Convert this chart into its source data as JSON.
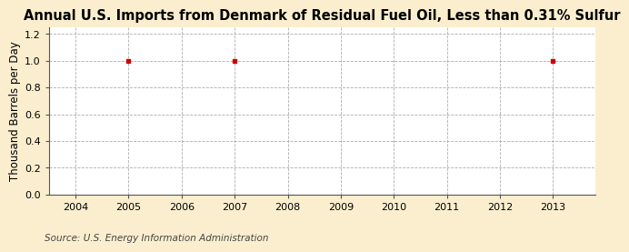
{
  "title": "Annual U.S. Imports from Denmark of Residual Fuel Oil, Less than 0.31% Sulfur",
  "ylabel": "Thousand Barrels per Day",
  "source": "Source: U.S. Energy Information Administration",
  "xlim": [
    2003.5,
    2013.8
  ],
  "ylim": [
    0.0,
    1.25
  ],
  "xticks": [
    2004,
    2005,
    2006,
    2007,
    2008,
    2009,
    2010,
    2011,
    2012,
    2013
  ],
  "yticks": [
    0.0,
    0.2,
    0.4,
    0.6,
    0.8,
    1.0,
    1.2
  ],
  "data_x": [
    2005,
    2007,
    2013
  ],
  "data_y": [
    1.0,
    1.0,
    1.0
  ],
  "marker_color": "#cc0000",
  "marker": "s",
  "marker_size": 3.5,
  "background_color": "#faeece",
  "plot_bg_color": "#ffffff",
  "grid_color": "#999999",
  "spine_color": "#555555",
  "title_fontsize": 10.5,
  "axis_fontsize": 8.5,
  "tick_fontsize": 8,
  "source_fontsize": 7.5
}
